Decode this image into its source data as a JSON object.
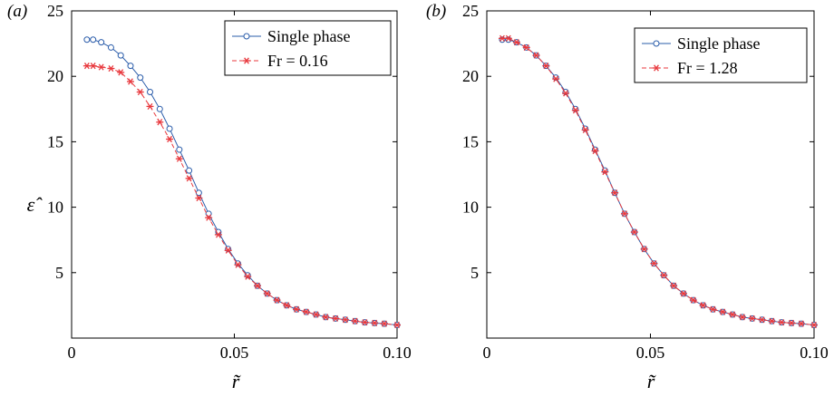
{
  "chart_data": [
    {
      "type": "line",
      "panel_label": "(a)",
      "xlabel": "r̃",
      "ylabel": "ε̂",
      "xlim": [
        0,
        0.1
      ],
      "ylim": [
        0,
        25
      ],
      "xticks": [
        "0",
        "0.05",
        "0.10"
      ],
      "yticks": [
        "5",
        "10",
        "15",
        "20",
        "25"
      ],
      "legend_position": "top-right",
      "grid": false,
      "series": [
        {
          "name": "Single phase",
          "color": "#2a5caa",
          "marker": "circle",
          "line": "solid",
          "x": [
            0.0047,
            0.0066,
            0.0091,
            0.0121,
            0.0151,
            0.0181,
            0.0211,
            0.0241,
            0.0271,
            0.0301,
            0.0331,
            0.0361,
            0.0391,
            0.0421,
            0.0451,
            0.0481,
            0.0511,
            0.0541,
            0.0571,
            0.0601,
            0.0631,
            0.0661,
            0.0691,
            0.0721,
            0.0751,
            0.0781,
            0.0811,
            0.0841,
            0.0871,
            0.0901,
            0.0931,
            0.0961,
            0.1
          ],
          "y": [
            22.8,
            22.8,
            22.6,
            22.2,
            21.6,
            20.8,
            19.9,
            18.8,
            17.5,
            16.0,
            14.4,
            12.8,
            11.1,
            9.5,
            8.1,
            6.8,
            5.7,
            4.8,
            4.0,
            3.4,
            2.9,
            2.5,
            2.2,
            2.0,
            1.8,
            1.6,
            1.5,
            1.4,
            1.3,
            1.2,
            1.15,
            1.1,
            1.0
          ]
        },
        {
          "name": "Fr = 0.16",
          "color": "#e8383d",
          "marker": "asterisk",
          "line": "dashed",
          "x": [
            0.0047,
            0.0066,
            0.0091,
            0.0121,
            0.0151,
            0.0181,
            0.0211,
            0.0241,
            0.0271,
            0.0301,
            0.0331,
            0.0361,
            0.0391,
            0.0421,
            0.0451,
            0.0481,
            0.0511,
            0.0541,
            0.0571,
            0.0601,
            0.0631,
            0.0661,
            0.0691,
            0.0721,
            0.0751,
            0.0781,
            0.0811,
            0.0841,
            0.0871,
            0.0901,
            0.0931,
            0.0961,
            0.1
          ],
          "y": [
            20.8,
            20.8,
            20.7,
            20.6,
            20.3,
            19.6,
            18.8,
            17.7,
            16.5,
            15.2,
            13.7,
            12.2,
            10.7,
            9.2,
            7.9,
            6.7,
            5.6,
            4.7,
            4.0,
            3.4,
            2.9,
            2.5,
            2.2,
            2.0,
            1.8,
            1.6,
            1.5,
            1.4,
            1.3,
            1.2,
            1.15,
            1.1,
            1.0
          ]
        }
      ]
    },
    {
      "type": "line",
      "panel_label": "(b)",
      "xlabel": "r̃",
      "ylabel": "",
      "xlim": [
        0,
        0.1
      ],
      "ylim": [
        0,
        25
      ],
      "xticks": [
        "0",
        "0.05",
        "0.10"
      ],
      "yticks": [
        "5",
        "10",
        "15",
        "20",
        "25"
      ],
      "legend_position": "top-right",
      "grid": false,
      "series": [
        {
          "name": "Single phase",
          "color": "#2a5caa",
          "marker": "circle",
          "line": "solid",
          "x": [
            0.0047,
            0.0066,
            0.0091,
            0.0121,
            0.0151,
            0.0181,
            0.0211,
            0.0241,
            0.0271,
            0.0301,
            0.0331,
            0.0361,
            0.0391,
            0.0421,
            0.0451,
            0.0481,
            0.0511,
            0.0541,
            0.0571,
            0.0601,
            0.0631,
            0.0661,
            0.0691,
            0.0721,
            0.0751,
            0.0781,
            0.0811,
            0.0841,
            0.0871,
            0.0901,
            0.0931,
            0.0961,
            0.1
          ],
          "y": [
            22.8,
            22.8,
            22.6,
            22.2,
            21.6,
            20.8,
            19.9,
            18.8,
            17.5,
            16.0,
            14.4,
            12.8,
            11.1,
            9.5,
            8.1,
            6.8,
            5.7,
            4.8,
            4.0,
            3.4,
            2.9,
            2.5,
            2.2,
            2.0,
            1.8,
            1.6,
            1.5,
            1.4,
            1.3,
            1.2,
            1.15,
            1.1,
            1.0
          ]
        },
        {
          "name": "Fr = 1.28",
          "color": "#e8383d",
          "marker": "asterisk",
          "line": "dashed",
          "x": [
            0.0047,
            0.0066,
            0.0091,
            0.0121,
            0.0151,
            0.0181,
            0.0211,
            0.0241,
            0.0271,
            0.0301,
            0.0331,
            0.0361,
            0.0391,
            0.0421,
            0.0451,
            0.0481,
            0.0511,
            0.0541,
            0.0571,
            0.0601,
            0.0631,
            0.0661,
            0.0691,
            0.0721,
            0.0751,
            0.0781,
            0.0811,
            0.0841,
            0.0871,
            0.0901,
            0.0931,
            0.0961,
            0.1
          ],
          "y": [
            22.9,
            22.9,
            22.6,
            22.2,
            21.6,
            20.8,
            19.8,
            18.7,
            17.4,
            15.9,
            14.3,
            12.7,
            11.1,
            9.5,
            8.1,
            6.8,
            5.7,
            4.8,
            4.0,
            3.4,
            2.9,
            2.5,
            2.2,
            2.0,
            1.8,
            1.6,
            1.5,
            1.4,
            1.3,
            1.2,
            1.15,
            1.1,
            1.0
          ]
        }
      ]
    }
  ]
}
